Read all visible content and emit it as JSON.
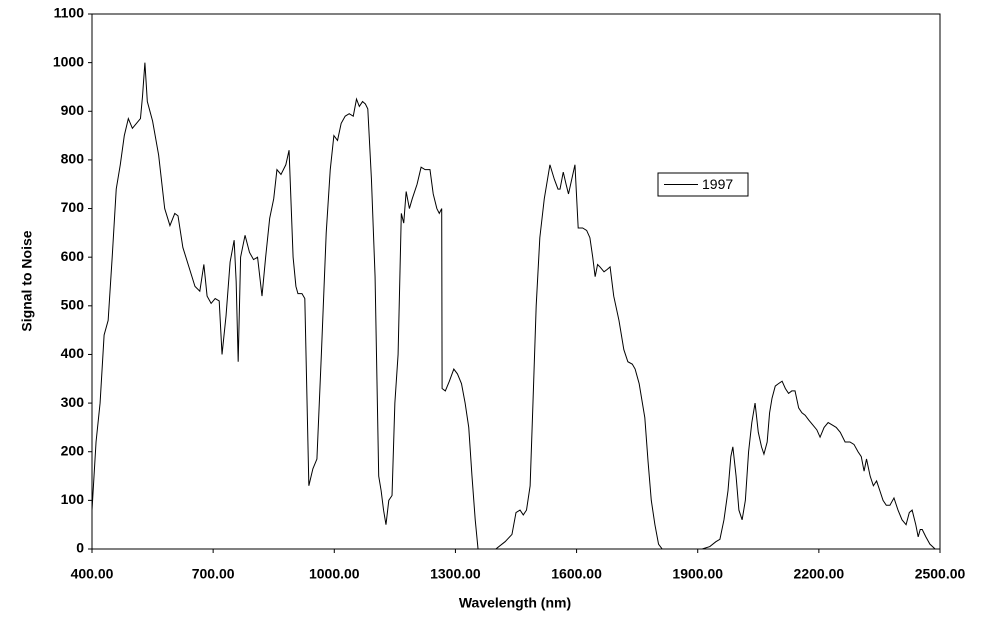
{
  "chart_data": {
    "type": "line",
    "x_label": "Wavelength  (nm)",
    "y_label": "Signal to Noise",
    "xlim": [
      400,
      2500
    ],
    "ylim": [
      0,
      1100
    ],
    "xticks": [
      {
        "value": 400,
        "label": "400.00"
      },
      {
        "value": 700,
        "label": "700.00"
      },
      {
        "value": 1000,
        "label": "1000.00"
      },
      {
        "value": 1300,
        "label": "1300.00"
      },
      {
        "value": 1600,
        "label": "1600.00"
      },
      {
        "value": 1900,
        "label": "1900.00"
      },
      {
        "value": 2200,
        "label": "2200.00"
      },
      {
        "value": 2500,
        "label": "2500.00"
      }
    ],
    "yticks": [
      0,
      100,
      200,
      300,
      400,
      500,
      600,
      700,
      800,
      900,
      1000,
      1100
    ],
    "grid": false,
    "legend_position": "right",
    "x": [
      400,
      410,
      420,
      430,
      440,
      450,
      460,
      470,
      480,
      490,
      500,
      510,
      520,
      525,
      531,
      537,
      550,
      565,
      580,
      593,
      605,
      613,
      625,
      640,
      655,
      667,
      677,
      685,
      695,
      705,
      715,
      722,
      732,
      742,
      752,
      757,
      762,
      768,
      779,
      790,
      800,
      810,
      821,
      830,
      840,
      850,
      858,
      868,
      880,
      888,
      898,
      905,
      910,
      920,
      927,
      937,
      947,
      957,
      968,
      980,
      990,
      999,
      1008,
      1017,
      1027,
      1037,
      1047,
      1055,
      1062,
      1070,
      1077,
      1083,
      1092,
      1101,
      1110,
      1116,
      1122,
      1128,
      1135,
      1143,
      1150,
      1158,
      1166,
      1172,
      1178,
      1186,
      1193,
      1205,
      1215,
      1225,
      1237,
      1245,
      1254,
      1260,
      1266,
      1267,
      1275,
      1285,
      1296,
      1305,
      1315,
      1324,
      1333,
      1341,
      1349,
      1356,
      1400,
      1423,
      1440,
      1450,
      1460,
      1468,
      1476,
      1485,
      1492,
      1500,
      1509,
      1520,
      1534,
      1545,
      1554,
      1559,
      1567,
      1574,
      1580,
      1588,
      1596,
      1604,
      1615,
      1625,
      1633,
      1640,
      1646,
      1652,
      1658,
      1668,
      1676,
      1683,
      1692,
      1705,
      1717,
      1727,
      1738,
      1745,
      1755,
      1769,
      1777,
      1785,
      1794,
      1803,
      1812,
      1911,
      1930,
      1945,
      1955,
      1965,
      1975,
      1982,
      1987,
      1995,
      2002,
      2010,
      2018,
      2026,
      2034,
      2042,
      2050,
      2058,
      2064,
      2072,
      2078,
      2084,
      2092,
      2100,
      2109,
      2117,
      2125,
      2133,
      2141,
      2150,
      2158,
      2166,
      2175,
      2185,
      2195,
      2203,
      2213,
      2223,
      2233,
      2243,
      2253,
      2265,
      2277,
      2287,
      2297,
      2305,
      2312,
      2318,
      2327,
      2335,
      2343,
      2351,
      2359,
      2367,
      2376,
      2386,
      2396,
      2406,
      2416,
      2424,
      2431,
      2440,
      2446,
      2451,
      2456,
      2465,
      2475,
      2488
    ],
    "series": [
      {
        "name": "1997",
        "color": "#000000",
        "values": [
          80,
          220,
          300,
          440,
          470,
          600,
          740,
          790,
          850,
          885,
          865,
          875,
          885,
          930,
          1000,
          920,
          880,
          810,
          700,
          665,
          690,
          685,
          620,
          580,
          540,
          530,
          585,
          520,
          505,
          515,
          510,
          400,
          480,
          590,
          635,
          550,
          385,
          600,
          645,
          610,
          595,
          600,
          520,
          600,
          680,
          720,
          780,
          770,
          790,
          820,
          600,
          540,
          525,
          525,
          515,
          130,
          165,
          185,
          400,
          650,
          780,
          850,
          840,
          875,
          890,
          895,
          890,
          925,
          910,
          920,
          915,
          905,
          760,
          560,
          150,
          120,
          80,
          50,
          100,
          110,
          300,
          400,
          690,
          670,
          735,
          700,
          720,
          750,
          785,
          780,
          780,
          730,
          700,
          690,
          700,
          330,
          325,
          345,
          370,
          360,
          340,
          300,
          250,
          150,
          60,
          0,
          0,
          15,
          30,
          75,
          80,
          70,
          80,
          130,
          300,
          500,
          640,
          720,
          790,
          760,
          740,
          740,
          775,
          750,
          730,
          760,
          790,
          660,
          660,
          655,
          640,
          600,
          560,
          585,
          580,
          570,
          575,
          580,
          520,
          470,
          410,
          385,
          380,
          370,
          340,
          270,
          180,
          100,
          50,
          10,
          0,
          0,
          5,
          15,
          20,
          60,
          120,
          190,
          210,
          150,
          80,
          60,
          100,
          200,
          260,
          300,
          240,
          210,
          195,
          220,
          280,
          310,
          335,
          340,
          345,
          330,
          320,
          325,
          325,
          290,
          280,
          275,
          265,
          255,
          245,
          230,
          250,
          260,
          255,
          250,
          240,
          220,
          220,
          215,
          200,
          190,
          160,
          185,
          150,
          130,
          140,
          120,
          100,
          90,
          90,
          105,
          80,
          60,
          50,
          75,
          80,
          50,
          25,
          40,
          40,
          25,
          10,
          0
        ]
      }
    ]
  }
}
